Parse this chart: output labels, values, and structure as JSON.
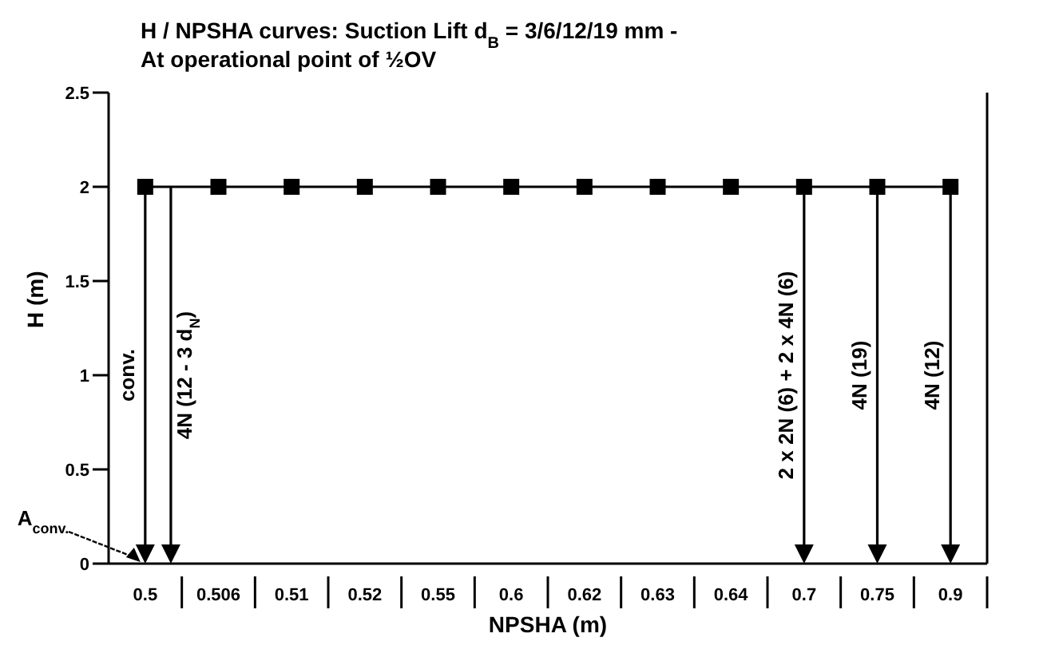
{
  "chart_data": {
    "type": "line",
    "title": "H / NPSHA curves: Suction Lift d$_{B}$ = 3/6/12/19 mm -\nAt operational point of ½OV",
    "xlabel": "NPSHA (m)",
    "ylabel": "H (m)",
    "categories": [
      "0.5",
      "0.506",
      "0.51",
      "0.52",
      "0.55",
      "0.6",
      "0.62",
      "0.63",
      "0.64",
      "0.7",
      "0.75",
      "0.9"
    ],
    "series": [
      {
        "color": "#000000",
        "values": [
          2,
          2,
          2,
          2,
          2,
          2,
          2,
          2,
          2,
          2,
          2,
          2
        ]
      }
    ],
    "ylim": [
      0,
      2.5
    ],
    "yticks": [
      0,
      0.5,
      1,
      1.5,
      2,
      2.5
    ],
    "grid": false,
    "marker": "square",
    "line_style": "solid",
    "annotations": [
      "conv.",
      "4N (12 - 3 d$_{N}$)",
      "2 x 2N (6) + 2 x 4N (6)",
      "4N (19)",
      "4N (12)",
      "A$_{conv.}$"
    ]
  }
}
